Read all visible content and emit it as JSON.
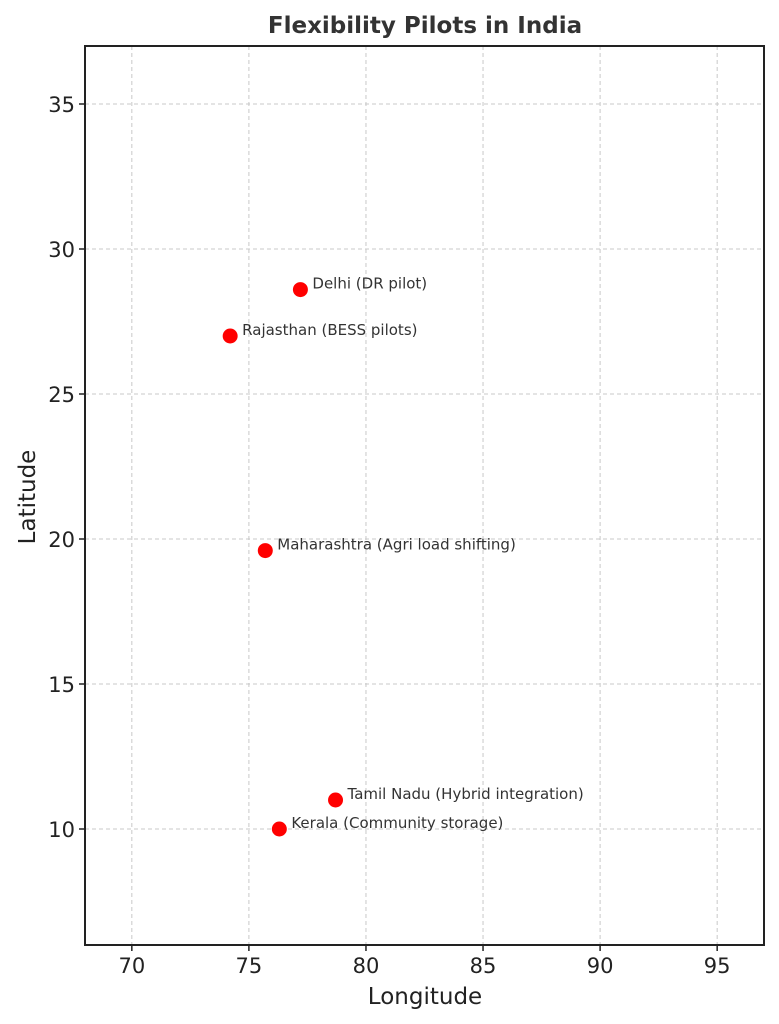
{
  "chart_data": {
    "type": "scatter",
    "title": "Flexibility Pilots in India",
    "xlabel": "Longitude",
    "ylabel": "Latitude",
    "xlim": [
      68,
      97
    ],
    "ylim": [
      6,
      37
    ],
    "xticks": [
      70,
      75,
      80,
      85,
      90,
      95
    ],
    "yticks": [
      10,
      15,
      20,
      25,
      30,
      35
    ],
    "grid": true,
    "point_color": "#ff0000",
    "points": [
      {
        "x": 77.2,
        "y": 28.6,
        "label": "Delhi (DR pilot)"
      },
      {
        "x": 74.2,
        "y": 27.0,
        "label": "Rajasthan (BESS pilots)"
      },
      {
        "x": 75.7,
        "y": 19.6,
        "label": "Maharashtra (Agri load shifting)"
      },
      {
        "x": 78.7,
        "y": 11.0,
        "label": "Tamil Nadu (Hybrid integration)"
      },
      {
        "x": 76.3,
        "y": 10.0,
        "label": "Kerala (Community storage)"
      }
    ]
  }
}
